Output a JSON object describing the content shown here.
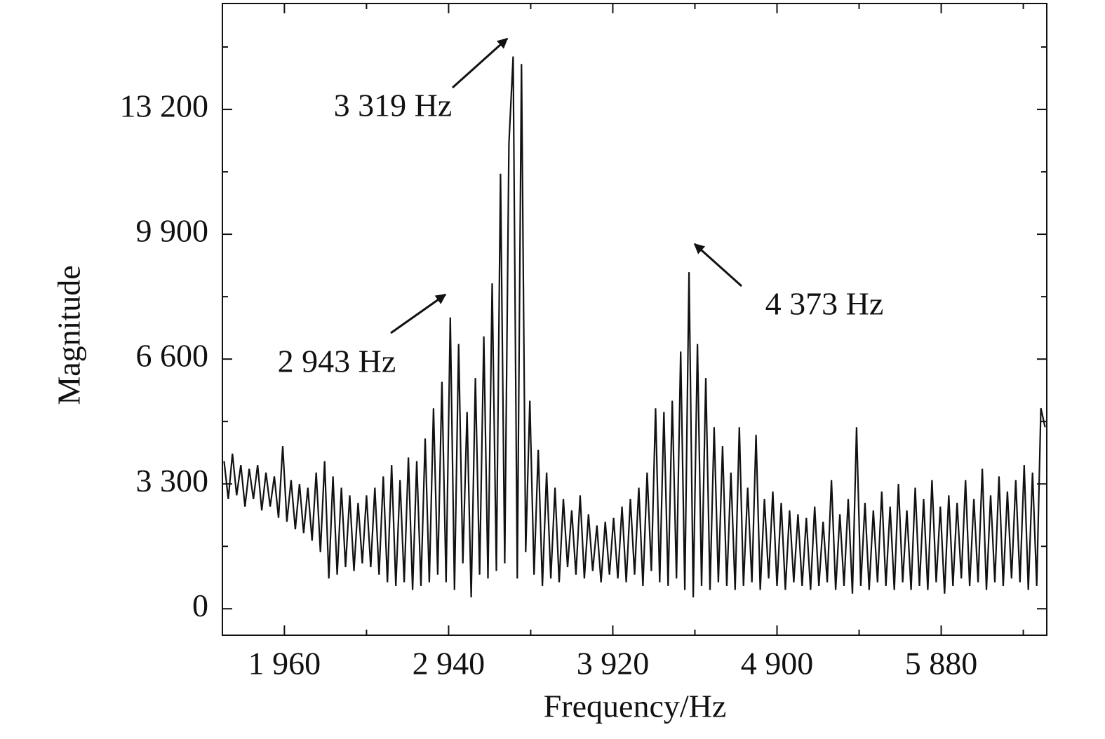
{
  "chart_data": {
    "type": "line",
    "x_label": "Frequency/Hz",
    "y_label": "Magnitude",
    "annotations": [
      "3 319 Hz",
      "2 943 Hz",
      "4 373 Hz"
    ],
    "xlim": [
      1590,
      6510
    ],
    "ylim": [
      -700,
      16000
    ],
    "xticks": [
      {
        "value": 1960,
        "label": "1 960"
      },
      {
        "value": 2940,
        "label": "2 940"
      },
      {
        "value": 3920,
        "label": "3 920"
      },
      {
        "value": 4900,
        "label": "4 900"
      },
      {
        "value": 5880,
        "label": "5 880"
      }
    ],
    "xminorticks": [
      2450,
      3430,
      4410,
      5390,
      6370
    ],
    "yticks": [
      0,
      {
        "value": 3300,
        "label": "3 300"
      },
      {
        "value": 6600,
        "label": "6 600"
      },
      {
        "value": 9900,
        "label": "9 900"
      },
      {
        "value": 13200,
        "label": "13 200"
      }
    ],
    "yminorticks": [
      1650,
      4950,
      8250,
      11550,
      14850
    ],
    "series": [
      {
        "color": "#111111",
        "x": [
          1600,
          1625,
          1650,
          1675,
          1700,
          1725,
          1750,
          1775,
          1800,
          1825,
          1850,
          1875,
          1900,
          1925,
          1950,
          1975,
          2000,
          2025,
          2050,
          2075,
          2100,
          2125,
          2150,
          2175,
          2200,
          2225,
          2250,
          2275,
          2300,
          2325,
          2350,
          2375,
          2400,
          2425,
          2450,
          2475,
          2500,
          2525,
          2550,
          2575,
          2600,
          2625,
          2650,
          2675,
          2700,
          2725,
          2750,
          2775,
          2800,
          2825,
          2850,
          2875,
          2900,
          2925,
          2950,
          2975,
          3000,
          3025,
          3050,
          3075,
          3100,
          3125,
          3150,
          3175,
          3200,
          3225,
          3250,
          3275,
          3300,
          3325,
          3350,
          3375,
          3400,
          3425,
          3450,
          3475,
          3500,
          3525,
          3550,
          3575,
          3600,
          3625,
          3650,
          3675,
          3700,
          3725,
          3750,
          3775,
          3800,
          3825,
          3850,
          3875,
          3900,
          3925,
          3950,
          3975,
          4000,
          4025,
          4050,
          4075,
          4100,
          4125,
          4150,
          4175,
          4200,
          4225,
          4250,
          4275,
          4300,
          4325,
          4350,
          4375,
          4400,
          4425,
          4450,
          4475,
          4500,
          4525,
          4550,
          4575,
          4600,
          4625,
          4650,
          4675,
          4700,
          4725,
          4750,
          4775,
          4800,
          4825,
          4850,
          4875,
          4900,
          4925,
          4950,
          4975,
          5000,
          5025,
          5050,
          5075,
          5100,
          5125,
          5150,
          5175,
          5200,
          5225,
          5250,
          5275,
          5300,
          5325,
          5350,
          5375,
          5400,
          5425,
          5450,
          5475,
          5500,
          5525,
          5550,
          5575,
          5600,
          5625,
          5650,
          5675,
          5700,
          5725,
          5750,
          5775,
          5800,
          5825,
          5850,
          5875,
          5900,
          5925,
          5950,
          5975,
          6000,
          6025,
          6050,
          6075,
          6100,
          6125,
          6150,
          6175,
          6200,
          6225,
          6250,
          6275,
          6300,
          6325,
          6350,
          6375,
          6400,
          6425,
          6450,
          6475,
          6500
        ],
        "values": [
          3900,
          2900,
          4100,
          3000,
          3800,
          2700,
          3700,
          2900,
          3800,
          2600,
          3600,
          2700,
          3500,
          2400,
          4300,
          2300,
          3400,
          2100,
          3300,
          2000,
          3200,
          1800,
          3600,
          1500,
          3900,
          800,
          3500,
          900,
          3200,
          1100,
          3000,
          1000,
          2800,
          1200,
          3000,
          1100,
          3200,
          900,
          3500,
          700,
          3800,
          600,
          3400,
          700,
          4000,
          500,
          3900,
          600,
          4500,
          700,
          5300,
          900,
          6000,
          700,
          7700,
          500,
          7000,
          1200,
          5200,
          300,
          6100,
          900,
          7200,
          800,
          8600,
          1000,
          11500,
          1200,
          12300,
          14600,
          800,
          14400,
          1500,
          5500,
          900,
          4200,
          600,
          3600,
          800,
          3200,
          700,
          2900,
          1100,
          2600,
          900,
          3000,
          800,
          2500,
          1000,
          2200,
          700,
          2300,
          900,
          2400,
          800,
          2700,
          700,
          2900,
          900,
          3200,
          600,
          3600,
          1000,
          5300,
          700,
          5200,
          600,
          5500,
          800,
          6800,
          500,
          8900,
          300,
          7000,
          600,
          6100,
          500,
          4800,
          700,
          4300,
          600,
          3600,
          500,
          4800,
          600,
          3200,
          700,
          4600,
          500,
          2900,
          800,
          3100,
          600,
          2800,
          500,
          2600,
          700,
          2500,
          600,
          2400,
          500,
          2700,
          600,
          2300,
          700,
          3400,
          500,
          2500,
          600,
          2900,
          400,
          4800,
          600,
          2800,
          500,
          2600,
          700,
          3100,
          600,
          2700,
          500,
          3300,
          700,
          2600,
          500,
          3200,
          600,
          2900,
          500,
          3400,
          700,
          2700,
          400,
          3000,
          600,
          2800,
          800,
          3400,
          600,
          2900,
          700,
          3700,
          500,
          3000,
          700,
          3500,
          600,
          3100,
          800,
          3400,
          700,
          3800,
          500,
          3600,
          600,
          5300,
          4800
        ]
      }
    ]
  }
}
